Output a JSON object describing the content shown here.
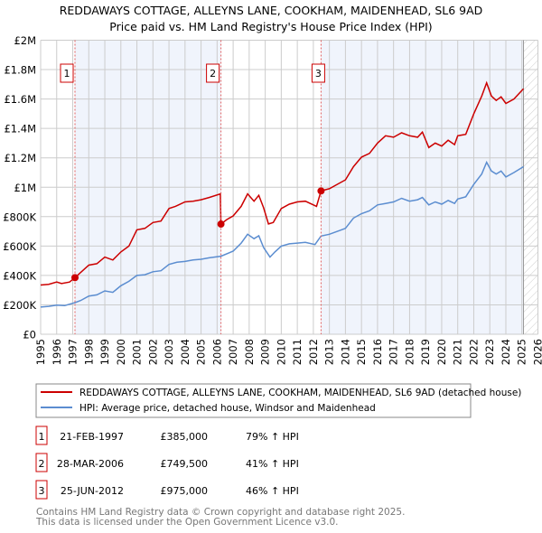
{
  "chart_data": {
    "type": "line",
    "title": "REDDAWAYS COTTAGE, ALLEYNS LANE, COOKHAM, MAIDENHEAD, SL6 9AD",
    "subtitle": "Price paid vs. HM Land Registry's House Price Index (HPI)",
    "xlim": [
      1995,
      2026
    ],
    "ylim": [
      0,
      2000000
    ],
    "x_ticks": [
      "1995",
      "1996",
      "1997",
      "1998",
      "1999",
      "2000",
      "2001",
      "2002",
      "2003",
      "2004",
      "2005",
      "2006",
      "2007",
      "2008",
      "2009",
      "2010",
      "2011",
      "2012",
      "2013",
      "2014",
      "2015",
      "2016",
      "2017",
      "2018",
      "2019",
      "2020",
      "2021",
      "2022",
      "2023",
      "2024",
      "2025",
      "2026"
    ],
    "y_ticks": [
      {
        "v": 0,
        "label": "£0"
      },
      {
        "v": 200000,
        "label": "£200K"
      },
      {
        "v": 400000,
        "label": "£400K"
      },
      {
        "v": 600000,
        "label": "£600K"
      },
      {
        "v": 800000,
        "label": "£800K"
      },
      {
        "v": 1000000,
        "label": "£1M"
      },
      {
        "v": 1200000,
        "label": "£1.2M"
      },
      {
        "v": 1400000,
        "label": "£1.4M"
      },
      {
        "v": 1600000,
        "label": "£1.6M"
      },
      {
        "v": 1800000,
        "label": "£1.8M"
      },
      {
        "v": 2000000,
        "label": "£2M"
      }
    ],
    "grid": true,
    "forecast_hatch_from": 2025.1,
    "series": [
      {
        "name": "REDDAWAYS COTTAGE, ALLEYNS LANE, COOKHAM, MAIDENHEAD, SL6 9AD (detached house)",
        "color": "#cc0000",
        "points": [
          [
            1995,
            335000
          ],
          [
            1995.5,
            340000
          ],
          [
            1996,
            355000
          ],
          [
            1996.3,
            345000
          ],
          [
            1996.8,
            355000
          ],
          [
            1997.14,
            385000
          ],
          [
            1998,
            470000
          ],
          [
            1998.5,
            480000
          ],
          [
            1999,
            525000
          ],
          [
            1999.5,
            505000
          ],
          [
            2000,
            560000
          ],
          [
            2000.5,
            600000
          ],
          [
            2001,
            710000
          ],
          [
            2001.5,
            720000
          ],
          [
            2002,
            760000
          ],
          [
            2002.5,
            770000
          ],
          [
            2003,
            855000
          ],
          [
            2003.4,
            870000
          ],
          [
            2003.6,
            880000
          ],
          [
            2004,
            900000
          ],
          [
            2004.5,
            905000
          ],
          [
            2005,
            915000
          ],
          [
            2005.5,
            930000
          ],
          [
            2006.2,
            955000
          ],
          [
            2006.24,
            749500
          ],
          [
            2006.6,
            780000
          ],
          [
            2007,
            805000
          ],
          [
            2007.5,
            870000
          ],
          [
            2007.9,
            955000
          ],
          [
            2008.3,
            905000
          ],
          [
            2008.6,
            945000
          ],
          [
            2008.9,
            860000
          ],
          [
            2009.2,
            750000
          ],
          [
            2009.5,
            760000
          ],
          [
            2010,
            855000
          ],
          [
            2010.5,
            885000
          ],
          [
            2011,
            900000
          ],
          [
            2011.5,
            905000
          ],
          [
            2012.2,
            870000
          ],
          [
            2012.48,
            975000
          ],
          [
            2013,
            990000
          ],
          [
            2013.5,
            1020000
          ],
          [
            2014,
            1050000
          ],
          [
            2014.5,
            1140000
          ],
          [
            2015,
            1205000
          ],
          [
            2015.5,
            1230000
          ],
          [
            2016,
            1300000
          ],
          [
            2016.5,
            1350000
          ],
          [
            2017,
            1340000
          ],
          [
            2017.5,
            1370000
          ],
          [
            2018,
            1350000
          ],
          [
            2018.5,
            1340000
          ],
          [
            2018.8,
            1375000
          ],
          [
            2019.2,
            1270000
          ],
          [
            2019.6,
            1300000
          ],
          [
            2020,
            1280000
          ],
          [
            2020.4,
            1320000
          ],
          [
            2020.8,
            1290000
          ],
          [
            2021,
            1350000
          ],
          [
            2021.5,
            1360000
          ],
          [
            2022,
            1500000
          ],
          [
            2022.5,
            1620000
          ],
          [
            2022.8,
            1710000
          ],
          [
            2023.1,
            1620000
          ],
          [
            2023.4,
            1590000
          ],
          [
            2023.7,
            1615000
          ],
          [
            2024,
            1570000
          ],
          [
            2024.5,
            1600000
          ],
          [
            2025.1,
            1670000
          ]
        ]
      },
      {
        "name": "HPI: Average price, detached house, Windsor and Maidenhead",
        "color": "#5b8dd0",
        "points": [
          [
            1995,
            185000
          ],
          [
            1995.5,
            190000
          ],
          [
            1996,
            198000
          ],
          [
            1996.5,
            195000
          ],
          [
            1997.14,
            215000
          ],
          [
            1997.5,
            230000
          ],
          [
            1998,
            260000
          ],
          [
            1998.5,
            268000
          ],
          [
            1999,
            295000
          ],
          [
            1999.5,
            285000
          ],
          [
            2000,
            330000
          ],
          [
            2000.5,
            360000
          ],
          [
            2001,
            400000
          ],
          [
            2001.5,
            405000
          ],
          [
            2002,
            425000
          ],
          [
            2002.5,
            432000
          ],
          [
            2003,
            475000
          ],
          [
            2003.5,
            490000
          ],
          [
            2004,
            495000
          ],
          [
            2004.5,
            505000
          ],
          [
            2005,
            510000
          ],
          [
            2005.5,
            520000
          ],
          [
            2006.24,
            531000
          ],
          [
            2007,
            565000
          ],
          [
            2007.5,
            620000
          ],
          [
            2007.9,
            680000
          ],
          [
            2008.3,
            650000
          ],
          [
            2008.6,
            670000
          ],
          [
            2008.9,
            590000
          ],
          [
            2009.3,
            525000
          ],
          [
            2009.6,
            560000
          ],
          [
            2010,
            600000
          ],
          [
            2010.5,
            615000
          ],
          [
            2011,
            620000
          ],
          [
            2011.5,
            625000
          ],
          [
            2012.1,
            610000
          ],
          [
            2012.48,
            668000
          ],
          [
            2013,
            680000
          ],
          [
            2013.5,
            700000
          ],
          [
            2014,
            720000
          ],
          [
            2014.5,
            790000
          ],
          [
            2015,
            820000
          ],
          [
            2015.5,
            840000
          ],
          [
            2016,
            880000
          ],
          [
            2016.5,
            890000
          ],
          [
            2017,
            900000
          ],
          [
            2017.5,
            925000
          ],
          [
            2018,
            905000
          ],
          [
            2018.5,
            915000
          ],
          [
            2018.8,
            930000
          ],
          [
            2019.2,
            880000
          ],
          [
            2019.6,
            900000
          ],
          [
            2020,
            885000
          ],
          [
            2020.4,
            910000
          ],
          [
            2020.8,
            890000
          ],
          [
            2021,
            920000
          ],
          [
            2021.5,
            935000
          ],
          [
            2022,
            1020000
          ],
          [
            2022.5,
            1090000
          ],
          [
            2022.8,
            1170000
          ],
          [
            2023.1,
            1110000
          ],
          [
            2023.4,
            1090000
          ],
          [
            2023.7,
            1110000
          ],
          [
            2024,
            1070000
          ],
          [
            2024.5,
            1100000
          ],
          [
            2025.1,
            1140000
          ]
        ]
      }
    ],
    "sales": [
      {
        "id": "1",
        "x": 1997.14,
        "value": 385000,
        "date": "21-FEB-1997",
        "price": "£385,000",
        "hpi": "79% ↑ HPI"
      },
      {
        "id": "2",
        "x": 2006.24,
        "value": 749500,
        "date": "28-MAR-2006",
        "price": "£749,500",
        "hpi": "41% ↑ HPI"
      },
      {
        "id": "3",
        "x": 2012.48,
        "value": 975000,
        "date": "25-JUN-2012",
        "price": "£975,000",
        "hpi": "46% ↑ HPI"
      }
    ],
    "legend_placement": "below"
  },
  "footer": {
    "line1": "Contains HM Land Registry data © Crown copyright and database right 2025.",
    "line2": "This data is licensed under the Open Government Licence v3.0."
  }
}
